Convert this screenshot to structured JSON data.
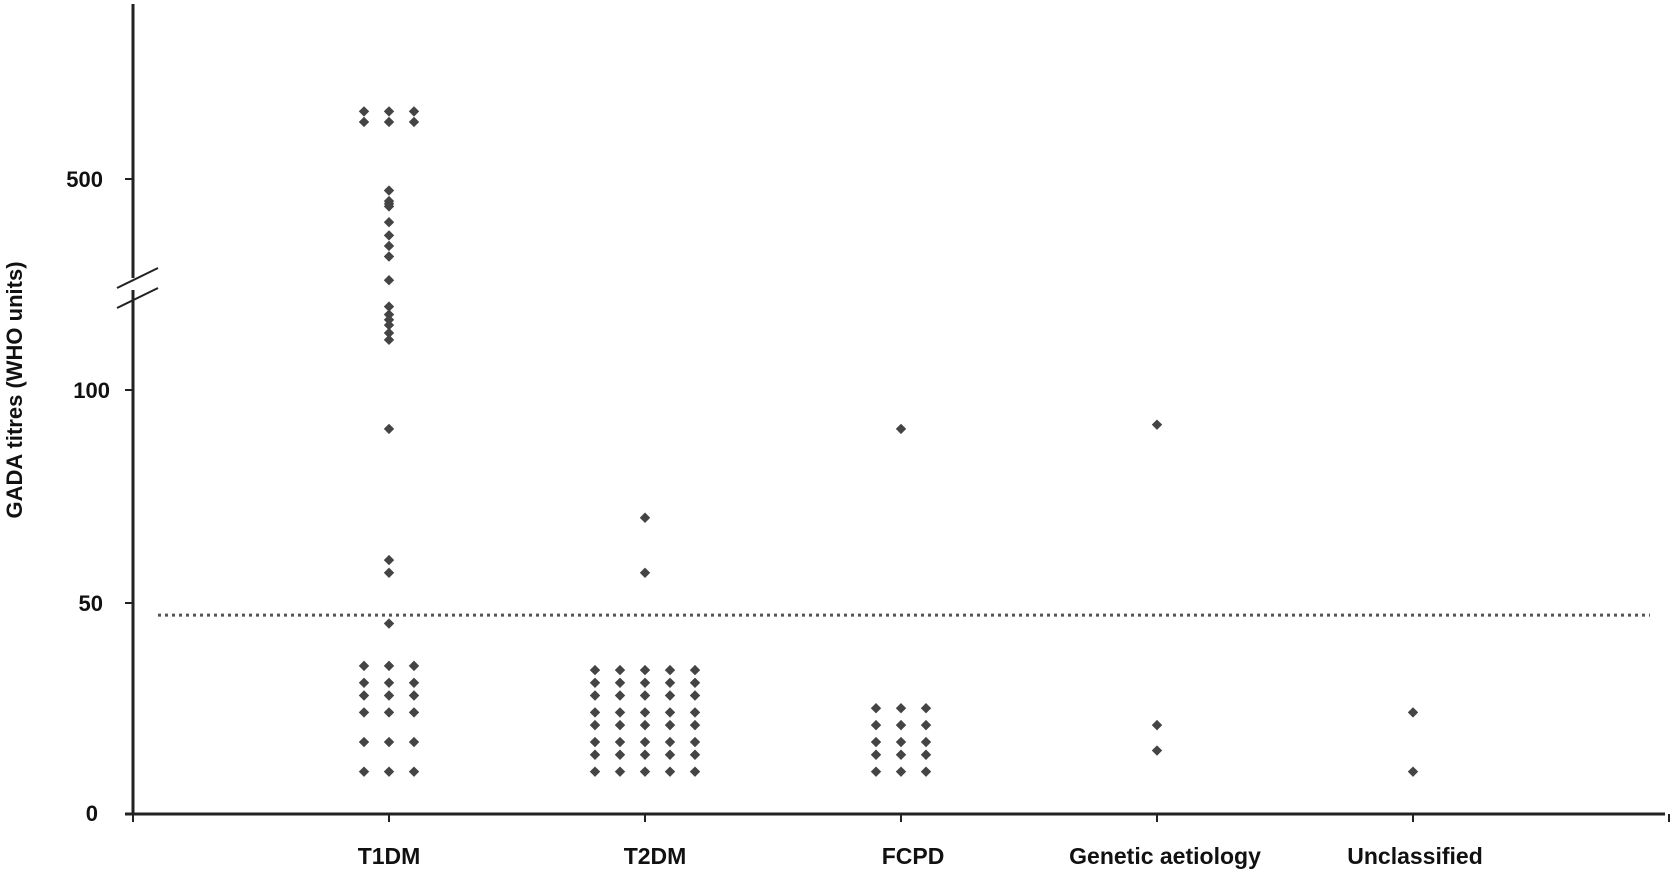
{
  "chart_data": {
    "type": "scatter",
    "ylabel": "GADA titres (WHO units)",
    "xlabel": "",
    "y_ticks": [
      "0",
      "50",
      "100",
      "500"
    ],
    "y_axis_break": true,
    "y_axis_break_range": [
      100,
      500
    ],
    "threshold_line": {
      "value": 47,
      "style": "dotted"
    },
    "categories": [
      "T1DM",
      "T2DM",
      "FCPD",
      "Genetic aetiology",
      "Unclassified"
    ],
    "grid": false,
    "legend": "none",
    "marker": "diamond",
    "marker_color": "#444444",
    "series": [
      {
        "category": "T1DM",
        "columns": [
          {
            "offset": -1,
            "y": [
              630,
              610,
              35,
              31,
              28,
              24,
              17,
              10
            ]
          },
          {
            "offset": 0,
            "y": [
              630,
              610,
              480,
              460,
              455,
              450,
              420,
              395,
              375,
              355,
              310,
              260,
              245,
              235,
              225,
              210,
              197,
              91,
              60,
              57,
              45,
              35,
              31,
              28,
              24,
              17,
              10
            ]
          },
          {
            "offset": 1,
            "y": [
              630,
              610,
              35,
              31,
              28,
              24,
              17,
              10
            ]
          }
        ]
      },
      {
        "category": "T2DM",
        "columns": [
          {
            "offset": -2,
            "y": [
              34,
              31,
              28,
              24,
              21,
              17,
              14,
              10
            ]
          },
          {
            "offset": -1,
            "y": [
              34,
              31,
              28,
              24,
              21,
              17,
              14,
              10
            ]
          },
          {
            "offset": 0,
            "y": [
              70,
              57,
              34,
              31,
              28,
              24,
              21,
              17,
              14,
              10
            ]
          },
          {
            "offset": 1,
            "y": [
              34,
              31,
              28,
              24,
              21,
              17,
              14,
              10
            ]
          },
          {
            "offset": 2,
            "y": [
              34,
              31,
              28,
              24,
              21,
              17,
              14,
              10
            ]
          }
        ]
      },
      {
        "category": "FCPD",
        "columns": [
          {
            "offset": -1,
            "y": [
              25,
              21,
              17,
              14,
              10
            ]
          },
          {
            "offset": 0,
            "y": [
              91,
              25,
              21,
              17,
              14,
              10
            ]
          },
          {
            "offset": 1,
            "y": [
              25,
              21,
              17,
              14,
              10
            ]
          }
        ]
      },
      {
        "category": "Genetic aetiology",
        "columns": [
          {
            "offset": 0,
            "y": [
              92,
              21,
              15
            ]
          }
        ]
      },
      {
        "category": "Unclassified",
        "columns": [
          {
            "offset": 0,
            "y": [
              24,
              10
            ]
          }
        ]
      }
    ]
  }
}
